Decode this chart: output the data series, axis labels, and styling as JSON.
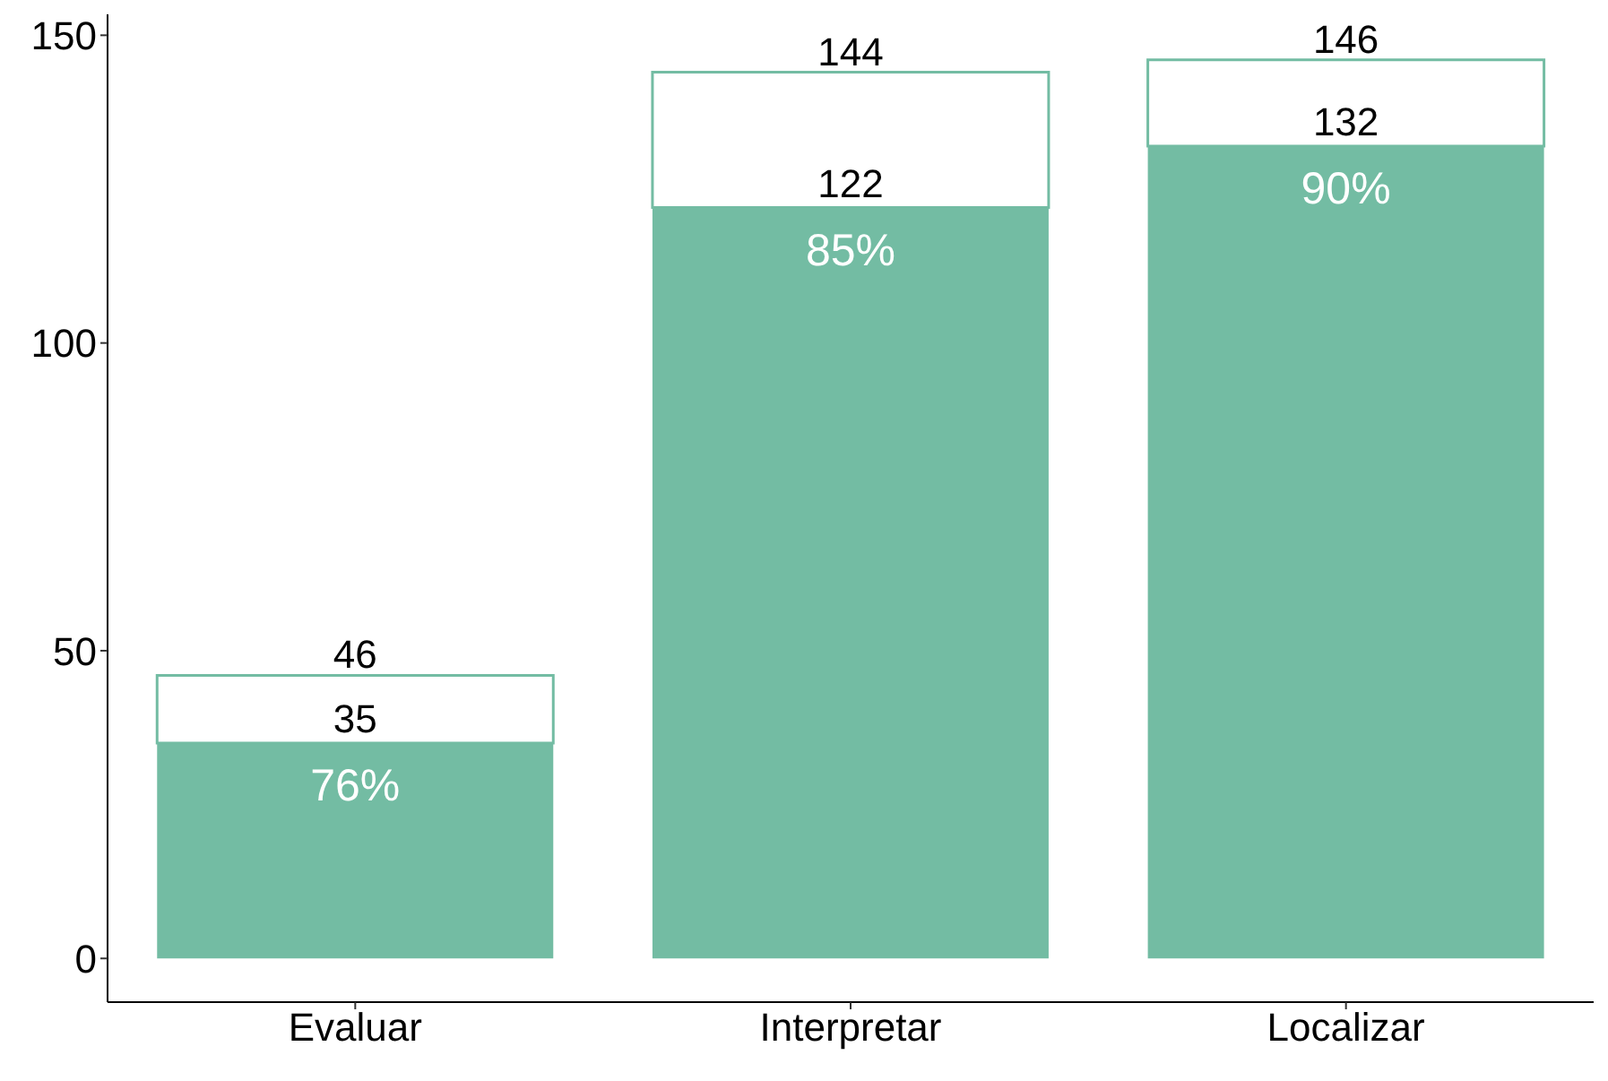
{
  "chart_data": {
    "type": "bar",
    "categories": [
      "Evaluar",
      "Interpretar",
      "Localizar"
    ],
    "stacked": true,
    "series": [
      {
        "color": "#73bca3",
        "values": [
          35,
          122,
          132
        ],
        "value_labels": [
          "35",
          "122",
          "132"
        ]
      },
      {
        "color": "#ffffff",
        "values": [
          11,
          22,
          14
        ]
      }
    ],
    "totals": [
      "46",
      "144",
      "146"
    ],
    "annotations": [
      {
        "text": "76%",
        "x": "Evaluar",
        "y": 35
      },
      {
        "text": "85%",
        "x": "Interpretar",
        "y": 122
      },
      {
        "text": "90%",
        "x": "Localizar",
        "y": 132
      }
    ],
    "ylim": [
      -7.1,
      153.4
    ],
    "yticks": [
      0,
      50,
      100,
      150
    ],
    "grid": false
  }
}
